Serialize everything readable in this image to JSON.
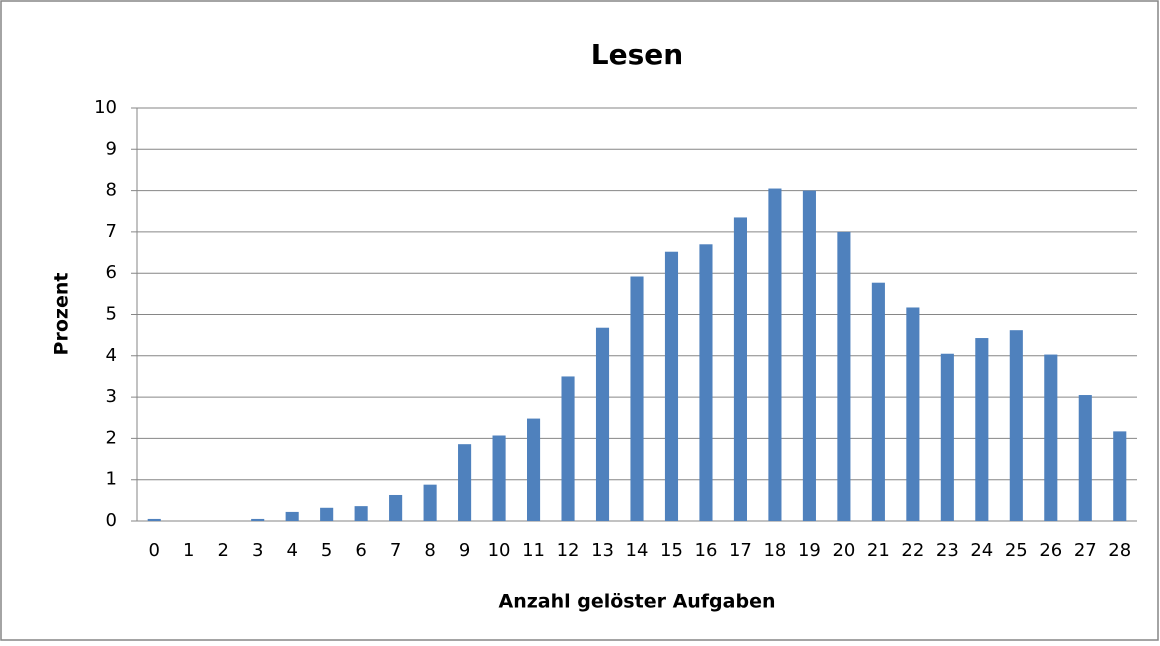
{
  "chart_data": {
    "type": "bar",
    "title": "Lesen",
    "x_label": "Anzahl gelöster Aufgaben",
    "y_label": "Prozent",
    "categories": [
      "0",
      "1",
      "2",
      "3",
      "4",
      "5",
      "6",
      "7",
      "8",
      "9",
      "10",
      "11",
      "12",
      "13",
      "14",
      "15",
      "16",
      "17",
      "18",
      "19",
      "20",
      "21",
      "22",
      "23",
      "24",
      "25",
      "26",
      "27",
      "28"
    ],
    "values": [
      0.05,
      0,
      0,
      0.05,
      0.22,
      0.32,
      0.36,
      0.63,
      0.88,
      1.86,
      2.07,
      2.48,
      3.5,
      4.68,
      5.92,
      6.52,
      6.7,
      7.35,
      8.05,
      8.0,
      7.0,
      5.77,
      5.17,
      4.05,
      4.43,
      4.62,
      4.03,
      3.05,
      2.17
    ],
    "color": "#4f81bd",
    "ylim": [
      0,
      10
    ],
    "yticks": [
      0,
      1,
      2,
      3,
      4,
      5,
      6,
      7,
      8,
      9,
      10
    ],
    "grid": true
  }
}
